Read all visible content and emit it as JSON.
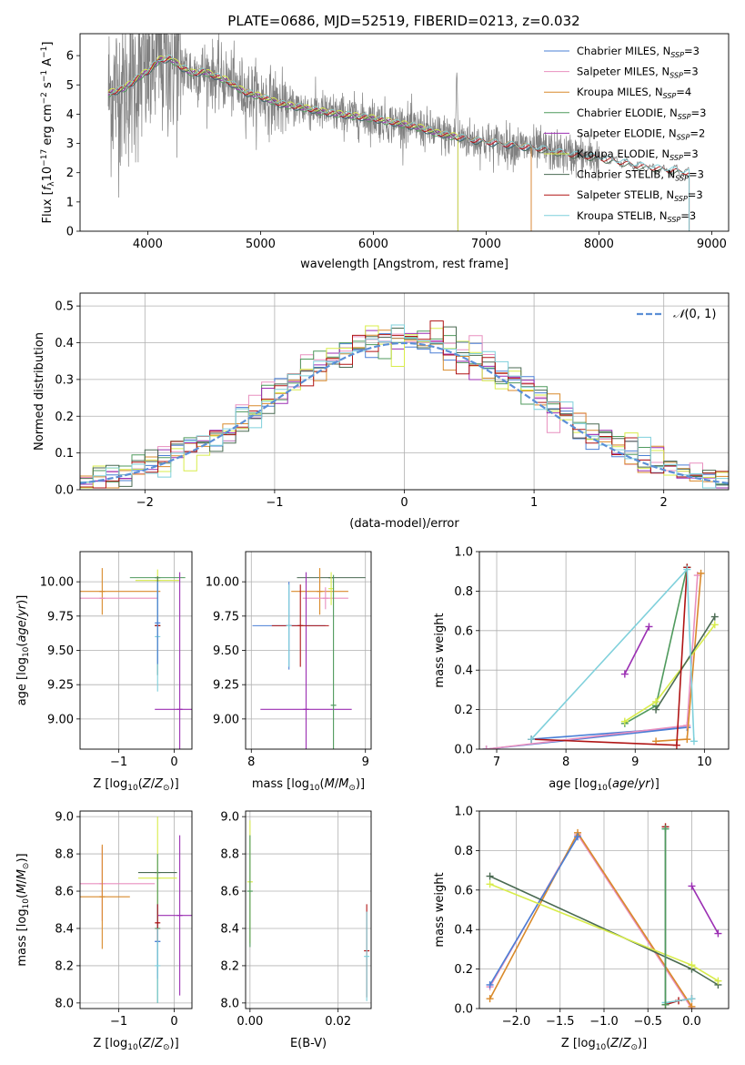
{
  "figure": {
    "title": "PLATE=0686, MJD=52519, FIBERID=0213, z=0.032"
  },
  "colors": {
    "Chabrier MILES": "#4a7fd6",
    "Salpeter MILES": "#e88fbf",
    "Kroupa MILES": "#d98a2b",
    "Chabrier ELODIE": "#4f9a5d",
    "Salpeter ELODIE": "#9b2fb3",
    "Kroupa ELODIE": "#d8ec4a",
    "Chabrier STELIB": "#4a6a52",
    "Salpeter STELIB": "#b01515",
    "Kroupa STELIB": "#7fd0db",
    "data": "#808080",
    "normal": "#5b8fd6"
  },
  "chart_data": [
    {
      "id": "spectrum",
      "type": "line",
      "xlabel": "wavelength [Angstrom, rest frame]",
      "ylabel": "Flux [f_λ 10^-17 erg cm^-2 s^-1 A^-1]",
      "xlim": [
        3400,
        9150
      ],
      "ylim": [
        0,
        6.75
      ],
      "xticks": [
        4000,
        5000,
        6000,
        7000,
        8000,
        9000
      ],
      "yticks": [
        0,
        1,
        2,
        3,
        4,
        5,
        6
      ],
      "legend": "top-right",
      "legend_entries": [
        {
          "model": "Chabrier MILES",
          "n": "3"
        },
        {
          "model": "Salpeter MILES",
          "n": "3"
        },
        {
          "model": "Kroupa MILES",
          "n": "4"
        },
        {
          "model": "Chabrier ELODIE",
          "n": "3"
        },
        {
          "model": "Salpeter ELODIE",
          "n": "2"
        },
        {
          "model": "Kroupa ELODIE",
          "n": "3"
        },
        {
          "model": "Chabrier STELIB",
          "n": "3"
        },
        {
          "model": "Salpeter STELIB",
          "n": "3"
        },
        {
          "model": "Kroupa STELIB",
          "n": "3"
        }
      ],
      "continuum": [
        [
          3650,
          4.7
        ],
        [
          3800,
          4.9
        ],
        [
          3950,
          5.35
        ],
        [
          4000,
          5.45
        ],
        [
          4100,
          5.85
        ],
        [
          4200,
          5.9
        ],
        [
          4300,
          5.6
        ],
        [
          4400,
          5.4
        ],
        [
          4500,
          5.45
        ],
        [
          4700,
          5.15
        ],
        [
          4861,
          4.75
        ],
        [
          5000,
          4.6
        ],
        [
          5175,
          4.35
        ],
        [
          5400,
          4.2
        ],
        [
          5600,
          4.05
        ],
        [
          5800,
          3.95
        ],
        [
          6000,
          3.85
        ],
        [
          6200,
          3.7
        ],
        [
          6400,
          3.55
        ],
        [
          6563,
          3.35
        ],
        [
          6700,
          3.25
        ],
        [
          6900,
          3.1
        ],
        [
          7100,
          3.0
        ],
        [
          7300,
          2.9
        ],
        [
          7500,
          2.8
        ],
        [
          7700,
          2.65
        ],
        [
          7900,
          2.55
        ],
        [
          8000,
          2.5
        ],
        [
          8200,
          2.35
        ],
        [
          8400,
          2.2
        ],
        [
          8600,
          2.1
        ],
        [
          8800,
          2.0
        ]
      ],
      "data_wavelength_range": [
        3650,
        8000
      ],
      "model_ends": {
        "MILES": 7400,
        "ELODIE": 6750,
        "STELIB": 8800
      }
    },
    {
      "id": "residuals",
      "type": "line",
      "xlabel": "(data-model)/error",
      "ylabel": "Normed distribution",
      "xlim": [
        -2.5,
        2.5
      ],
      "ylim": [
        0,
        0.535
      ],
      "xticks": [
        -2,
        -1,
        0,
        1,
        2
      ],
      "yticks": [
        0.0,
        0.1,
        0.2,
        0.3,
        0.4,
        0.5
      ],
      "grid": true,
      "legend": "top-right",
      "normal_label": "N(0, 1)",
      "bin_width": 0.1
    },
    {
      "id": "age_vs_Z",
      "type": "scatter",
      "xlabel": "Z [log10(Z/Z⊙)]",
      "ylabel": "age [log10(age/yr)]",
      "xlim": [
        -1.7,
        0.32
      ],
      "ylim": [
        8.78,
        10.22
      ],
      "xticks": [
        -1,
        0
      ],
      "yticks": [
        9.0,
        9.25,
        9.5,
        9.75,
        10.0
      ],
      "points": [
        {
          "model": "Kroupa MILES",
          "x": -1.3,
          "y": 9.93,
          "xerr": 1.05,
          "yerr": 0.17
        },
        {
          "model": "Salpeter MILES",
          "x": -1.3,
          "y": 9.88,
          "xerr": 1.0,
          "yerr": 0.0
        },
        {
          "model": "Chabrier ELODIE",
          "x": -0.3,
          "y": 10.03,
          "xerr": 0.5,
          "yerr": 0.0
        },
        {
          "model": "Kroupa ELODIE",
          "x": -0.3,
          "y": 10.01,
          "xerr": 0.4,
          "yerr": 0.08
        },
        {
          "model": "Salpeter ELODIE",
          "x": 0.1,
          "y": 9.07,
          "xerr": 0.45,
          "yerr": 1.0
        },
        {
          "model": "Chabrier STELIB",
          "x": -0.3,
          "y": 9.68,
          "xerr": 0.05,
          "yerr": 0.36
        },
        {
          "model": "Salpeter STELIB",
          "x": -0.3,
          "y": 9.68,
          "xerr": 0.04,
          "yerr": 0.0
        },
        {
          "model": "Kroupa STELIB",
          "x": -0.3,
          "y": 9.6,
          "xerr": 0.0,
          "yerr": 0.4
        },
        {
          "model": "Chabrier MILES",
          "x": -0.3,
          "y": 9.7,
          "xerr": 0.0,
          "yerr": 0.3
        }
      ]
    },
    {
      "id": "age_vs_mass",
      "type": "scatter",
      "xlabel": "mass [log10(M/M⊙)]",
      "ylabel": "",
      "xlim": [
        7.95,
        9.05
      ],
      "ylim": [
        8.78,
        10.22
      ],
      "xticks": [
        8,
        9
      ],
      "yticks": [
        9.0,
        9.25,
        9.5,
        9.75,
        10.0
      ],
      "points": [
        {
          "model": "Chabrier STELIB",
          "x": 8.7,
          "y": 10.03,
          "xerr": 0.3,
          "yerr": 0.0
        },
        {
          "model": "Kroupa MILES",
          "x": 8.6,
          "y": 9.93,
          "xerr": 0.25,
          "yerr": 0.17
        },
        {
          "model": "Salpeter MILES",
          "x": 8.65,
          "y": 9.88,
          "xerr": 0.2,
          "yerr": 0.08
        },
        {
          "model": "Kroupa ELODIE",
          "x": 8.7,
          "y": 9.95,
          "xerr": 0.0,
          "yerr": 0.12
        },
        {
          "model": "Salpeter ELODIE",
          "x": 8.48,
          "y": 9.07,
          "xerr": 0.4,
          "yerr": 1.0
        },
        {
          "model": "Chabrier ELODIE",
          "x": 8.72,
          "y": 9.1,
          "xerr": 0.0,
          "yerr": 0.95
        },
        {
          "model": "Chabrier MILES",
          "x": 8.33,
          "y": 9.68,
          "xerr": 0.32,
          "yerr": 0.32
        },
        {
          "model": "Salpeter STELIB",
          "x": 8.43,
          "y": 9.68,
          "xerr": 0.25,
          "yerr": 0.3
        },
        {
          "model": "Kroupa STELIB",
          "x": 8.33,
          "y": 9.68,
          "xerr": 0.0,
          "yerr": 0.3
        }
      ]
    },
    {
      "id": "weight_vs_age",
      "type": "line",
      "xlabel": "age [log10(age/yr)]",
      "ylabel": "mass weight",
      "xlim": [
        6.75,
        10.35
      ],
      "ylim": [
        0,
        1.0
      ],
      "xticks": [
        7,
        8,
        9,
        10
      ],
      "yticks": [
        0.0,
        0.2,
        0.4,
        0.6,
        0.8,
        1.0
      ],
      "grid": true,
      "series": [
        {
          "model": "Chabrier MILES",
          "x": [
            6.85,
            9.75,
            7.5
          ],
          "y": [
            0.0,
            0.11,
            0.05
          ]
        },
        {
          "model": "Salpeter MILES",
          "x": [
            6.85,
            9.75,
            9.9
          ],
          "y": [
            0.0,
            0.12,
            0.88
          ]
        },
        {
          "model": "Kroupa MILES",
          "x": [
            9.3,
            9.75,
            9.95
          ],
          "y": [
            0.04,
            0.05,
            0.89
          ]
        },
        {
          "model": "Chabrier ELODIE",
          "x": [
            8.85,
            9.3,
            9.75
          ],
          "y": [
            0.13,
            0.22,
            0.92
          ]
        },
        {
          "model": "Salpeter ELODIE",
          "x": [
            8.85,
            9.2
          ],
          "y": [
            0.38,
            0.62
          ]
        },
        {
          "model": "Kroupa ELODIE",
          "x": [
            8.85,
            9.3,
            10.15
          ],
          "y": [
            0.14,
            0.24,
            0.63
          ]
        },
        {
          "model": "Chabrier STELIB",
          "x": [
            9.3,
            10.15
          ],
          "y": [
            0.2,
            0.67
          ]
        },
        {
          "model": "Salpeter STELIB",
          "x": [
            7.5,
            9.6,
            9.75
          ],
          "y": [
            0.05,
            0.02,
            0.92
          ]
        },
        {
          "model": "Kroupa STELIB",
          "x": [
            7.5,
            9.75,
            9.85
          ],
          "y": [
            0.05,
            0.91,
            0.04
          ]
        }
      ]
    },
    {
      "id": "mass_vs_Z",
      "type": "scatter",
      "xlabel": "Z [log10(Z/Z⊙)]",
      "ylabel": "mass [log10(M/M⊙)]",
      "xlim": [
        -1.7,
        0.32
      ],
      "ylim": [
        7.97,
        9.03
      ],
      "xticks": [
        -1,
        0
      ],
      "yticks": [
        8.0,
        8.2,
        8.4,
        8.6,
        8.8,
        9.0
      ],
      "points": [
        {
          "model": "Salpeter MILES",
          "x": -1.3,
          "y": 8.64,
          "xerr": 0.95,
          "yerr": 0.2
        },
        {
          "model": "Kroupa MILES",
          "x": -1.3,
          "y": 8.57,
          "xerr": 0.5,
          "yerr": 0.28
        },
        {
          "model": "Chabrier STELIB",
          "x": -0.3,
          "y": 8.7,
          "xerr": 0.35,
          "yerr": 0.0
        },
        {
          "model": "Kroupa ELODIE",
          "x": -0.3,
          "y": 8.67,
          "xerr": 0.35,
          "yerr": 0.33
        },
        {
          "model": "Salpeter ELODIE",
          "x": 0.1,
          "y": 8.47,
          "xerr": 0.4,
          "yerr": 0.43
        },
        {
          "model": "Chabrier ELODIE",
          "x": -0.3,
          "y": 8.4,
          "xerr": 0.0,
          "yerr": 0.4
        },
        {
          "model": "Chabrier MILES",
          "x": -0.3,
          "y": 8.33,
          "xerr": 0.05,
          "yerr": 0.2
        },
        {
          "model": "Salpeter STELIB",
          "x": -0.3,
          "y": 8.43,
          "xerr": 0.03,
          "yerr": 0.1
        },
        {
          "model": "Kroupa STELIB",
          "x": -0.3,
          "y": 8.2,
          "xerr": 0.0,
          "yerr": 0.2
        }
      ]
    },
    {
      "id": "mass_vs_EBV",
      "type": "scatter",
      "xlabel": "E(B-V)",
      "ylabel": "",
      "xlim": [
        -0.001,
        0.0275
      ],
      "ylim": [
        7.97,
        9.03
      ],
      "xticks": [
        0.0,
        0.02
      ],
      "yticks": [
        8.0,
        8.2,
        8.4,
        8.6,
        8.8,
        9.0
      ],
      "points": [
        {
          "model": "Kroupa ELODIE",
          "x": 0.0,
          "y": 8.65,
          "xerr": 0.0,
          "yerr": 0.33
        },
        {
          "model": "Chabrier ELODIE",
          "x": 0.0,
          "y": 8.6,
          "xerr": 0.0,
          "yerr": 0.3
        },
        {
          "model": "Salpeter STELIB",
          "x": 0.0265,
          "y": 8.28,
          "xerr": 0.0,
          "yerr": 0.25
        },
        {
          "model": "Kroupa STELIB",
          "x": 0.0265,
          "y": 8.25,
          "xerr": 0.0,
          "yerr": 0.24
        }
      ]
    },
    {
      "id": "weight_vs_Z",
      "type": "line",
      "xlabel": "Z [log10(Z/Z⊙)]",
      "ylabel": "mass weight",
      "xlim": [
        -2.42,
        0.42
      ],
      "ylim": [
        0,
        1.0
      ],
      "xticks": [
        -2.0,
        -1.5,
        -1.0,
        -0.5,
        0.0
      ],
      "grid": true,
      "yticks": [
        0.0,
        0.2,
        0.4,
        0.6,
        0.8,
        1.0
      ],
      "series": [
        {
          "model": "Salpeter MILES",
          "x": [
            -2.3,
            -1.3,
            0.0
          ],
          "y": [
            0.11,
            0.88,
            0.0
          ]
        },
        {
          "model": "Kroupa MILES",
          "x": [
            -2.3,
            -1.3,
            0.0
          ],
          "y": [
            0.05,
            0.89,
            0.01
          ]
        },
        {
          "model": "Chabrier MILES",
          "x": [
            -2.3,
            -1.3
          ],
          "y": [
            0.12,
            0.87
          ]
        },
        {
          "model": "Chabrier STELIB",
          "x": [
            -2.3,
            0.0,
            0.3
          ],
          "y": [
            0.67,
            0.2,
            0.12
          ]
        },
        {
          "model": "Kroupa ELODIE",
          "x": [
            -2.3,
            0.0,
            0.3
          ],
          "y": [
            0.63,
            0.22,
            0.14
          ]
        },
        {
          "model": "Salpeter ELODIE",
          "x": [
            0.0,
            0.3
          ],
          "y": [
            0.62,
            0.38
          ]
        },
        {
          "model": "Salpeter STELIB",
          "x": [
            -0.3,
            -0.3,
            -0.15,
            0.0
          ],
          "y": [
            0.92,
            0.02,
            0.04,
            0.05
          ]
        },
        {
          "model": "Kroupa STELIB",
          "x": [
            -0.3,
            -0.3,
            0.0
          ],
          "y": [
            0.91,
            0.03,
            0.05
          ]
        },
        {
          "model": "Chabrier ELODIE",
          "x": [
            -0.3,
            -0.3
          ],
          "y": [
            0.02,
            0.91
          ]
        }
      ]
    }
  ]
}
